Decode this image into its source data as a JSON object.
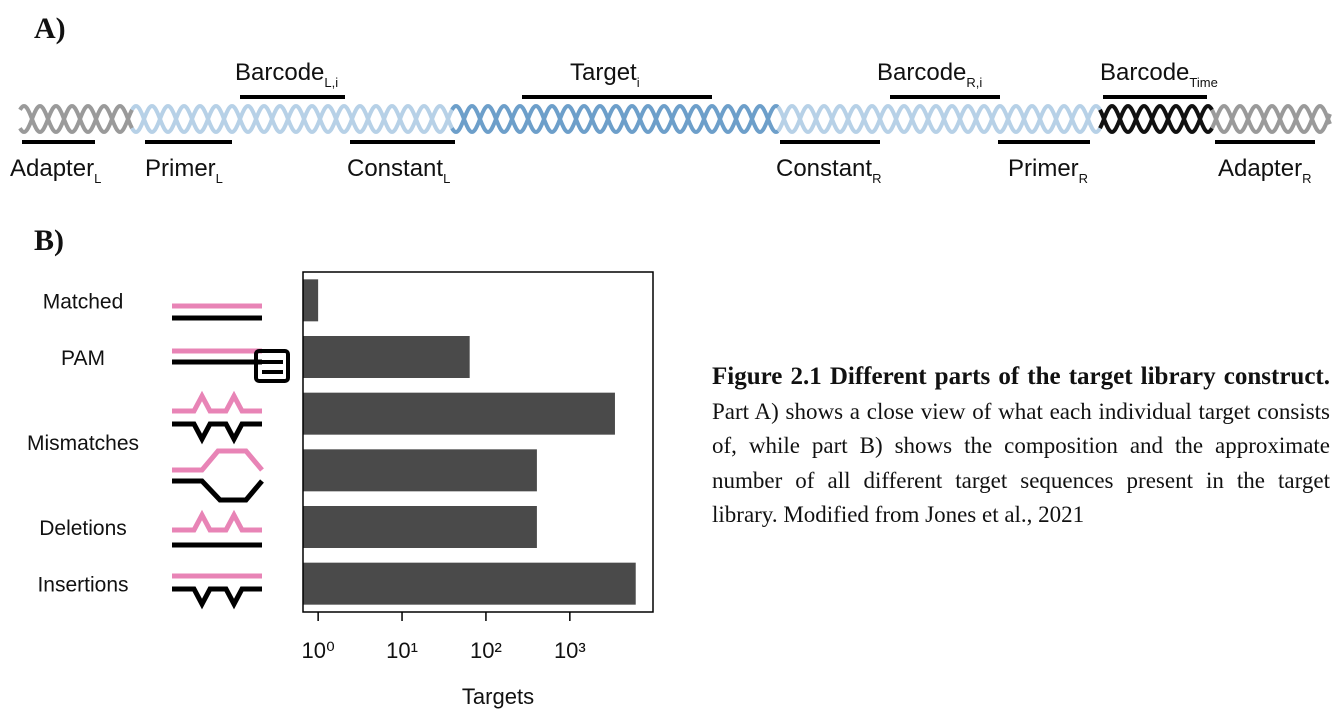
{
  "panel_a": {
    "label": "A)",
    "top_labels": [
      {
        "text": "Barcode",
        "sub": "L,i"
      },
      {
        "text": "Target",
        "sub": "i"
      },
      {
        "text": "Barcode",
        "sub": "R,i"
      },
      {
        "text": "Barcode",
        "sub": "Time"
      }
    ],
    "bottom_labels": [
      {
        "text": "Adapter",
        "sub": "L"
      },
      {
        "text": "Primer",
        "sub": "L"
      },
      {
        "text": "Constant",
        "sub": "L"
      },
      {
        "text": "Constant",
        "sub": "R"
      },
      {
        "text": "Primer",
        "sub": "R"
      },
      {
        "text": "Adapter",
        "sub": "R"
      }
    ]
  },
  "chart_data": {
    "type": "bar",
    "panel_label": "B)",
    "orientation": "horizontal",
    "log_scale": true,
    "categories": [
      "Matched",
      "PAM",
      "Mismatches",
      null,
      "Deletions",
      "Insertions"
    ],
    "values": [
      1,
      64,
      3450,
      405,
      405,
      6100
    ],
    "color": "#4a4a4a",
    "xlim": [
      0.66,
      9800
    ],
    "xticks": [
      {
        "value": 1,
        "label": "10⁰"
      },
      {
        "value": 10,
        "label": "10¹"
      },
      {
        "value": 100,
        "label": "10²"
      },
      {
        "value": 1000,
        "label": "10³"
      }
    ],
    "x_label": "Targets"
  },
  "caption": {
    "label": "Figure 2.1 Different parts of the target library construct.",
    "text": "Part A) shows a close view of what each individual target consists of, while part B) shows the composition and the approximate number of all different target sequences present in the target library. Modified from Jones et al., 2021"
  }
}
